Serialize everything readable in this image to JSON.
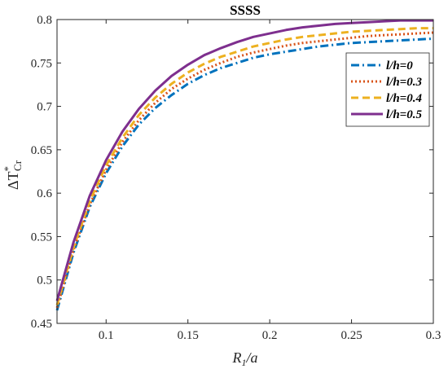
{
  "chart_data": {
    "type": "line",
    "title": "SSSS",
    "xlabel": {
      "main": "R",
      "sub": "1",
      "rest": "/a"
    },
    "ylabel": {
      "main": "ΔT",
      "sup": "*",
      "sub": "Cr"
    },
    "xlim": [
      0.07,
      0.3
    ],
    "ylim": [
      0.45,
      0.8
    ],
    "xticks": [
      0.1,
      0.15,
      0.2,
      0.25,
      0.3
    ],
    "xtick_labels": [
      "0.1",
      "0.15",
      "0.2",
      "0.25",
      "0.3"
    ],
    "yticks": [
      0.45,
      0.5,
      0.55,
      0.6,
      0.65,
      0.7,
      0.75,
      0.8
    ],
    "ytick_labels": [
      "0.45",
      "0.5",
      "0.55",
      "0.6",
      "0.65",
      "0.7",
      "0.75",
      "0.8"
    ],
    "grid": false,
    "legend_position": "top-right",
    "x": [
      0.07,
      0.08,
      0.09,
      0.1,
      0.11,
      0.12,
      0.13,
      0.14,
      0.15,
      0.16,
      0.17,
      0.18,
      0.19,
      0.2,
      0.21,
      0.22,
      0.23,
      0.24,
      0.25,
      0.26,
      0.27,
      0.28,
      0.29,
      0.3
    ],
    "series": [
      {
        "name": "l/h=0",
        "color": "#0072BD",
        "dash": "dashdot",
        "values": [
          0.465,
          0.531,
          0.584,
          0.623,
          0.654,
          0.679,
          0.698,
          0.713,
          0.726,
          0.736,
          0.744,
          0.75,
          0.756,
          0.76,
          0.763,
          0.766,
          0.769,
          0.771,
          0.773,
          0.774,
          0.775,
          0.776,
          0.777,
          0.778
        ]
      },
      {
        "name": "l/h=0.3",
        "color": "#D95319",
        "dash": "dotted",
        "values": [
          0.468,
          0.534,
          0.587,
          0.627,
          0.659,
          0.684,
          0.704,
          0.72,
          0.732,
          0.742,
          0.75,
          0.757,
          0.762,
          0.766,
          0.77,
          0.773,
          0.775,
          0.777,
          0.779,
          0.781,
          0.782,
          0.783,
          0.784,
          0.785
        ]
      },
      {
        "name": "l/h=0.4",
        "color": "#EDB120",
        "dash": "dashed",
        "values": [
          0.471,
          0.537,
          0.591,
          0.632,
          0.664,
          0.69,
          0.71,
          0.726,
          0.739,
          0.749,
          0.757,
          0.763,
          0.769,
          0.773,
          0.777,
          0.78,
          0.782,
          0.784,
          0.786,
          0.787,
          0.788,
          0.789,
          0.79,
          0.79
        ]
      },
      {
        "name": "l/h=0.5",
        "color": "#7E2F8E",
        "dash": "solid",
        "values": [
          0.476,
          0.543,
          0.597,
          0.638,
          0.671,
          0.697,
          0.718,
          0.735,
          0.748,
          0.759,
          0.767,
          0.774,
          0.78,
          0.784,
          0.788,
          0.791,
          0.793,
          0.795,
          0.796,
          0.797,
          0.798,
          0.799,
          0.799,
          0.799
        ]
      }
    ]
  }
}
